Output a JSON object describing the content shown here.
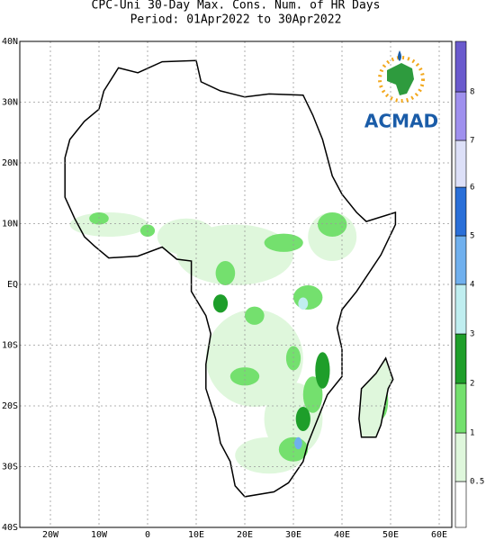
{
  "header": {
    "title": "CPC-Uni 30-Day Max. Cons. Num. of HR Days",
    "period": "Period: 01Apr2022 to 30Apr2022"
  },
  "map": {
    "lat_labels": [
      "40N",
      "30N",
      "20N",
      "10N",
      "EQ",
      "10S",
      "20S",
      "30S",
      "40S"
    ],
    "lon_labels": [
      "20W",
      "10W",
      "0",
      "10E",
      "20E",
      "30E",
      "40E",
      "50E",
      "60E"
    ],
    "logo": "ACMAD"
  },
  "colorbar": {
    "labels": [
      "0.5",
      "1",
      "2",
      "3",
      "4",
      "5",
      "6",
      "7",
      "8"
    ],
    "colors": [
      "#ffffff",
      "#dff7dc",
      "#74e06e",
      "#1e9e2a",
      "#c0eef0",
      "#70b0ee",
      "#2a6fd8",
      "#dde0f8",
      "#9f90ee",
      "#6a5acd"
    ]
  }
}
